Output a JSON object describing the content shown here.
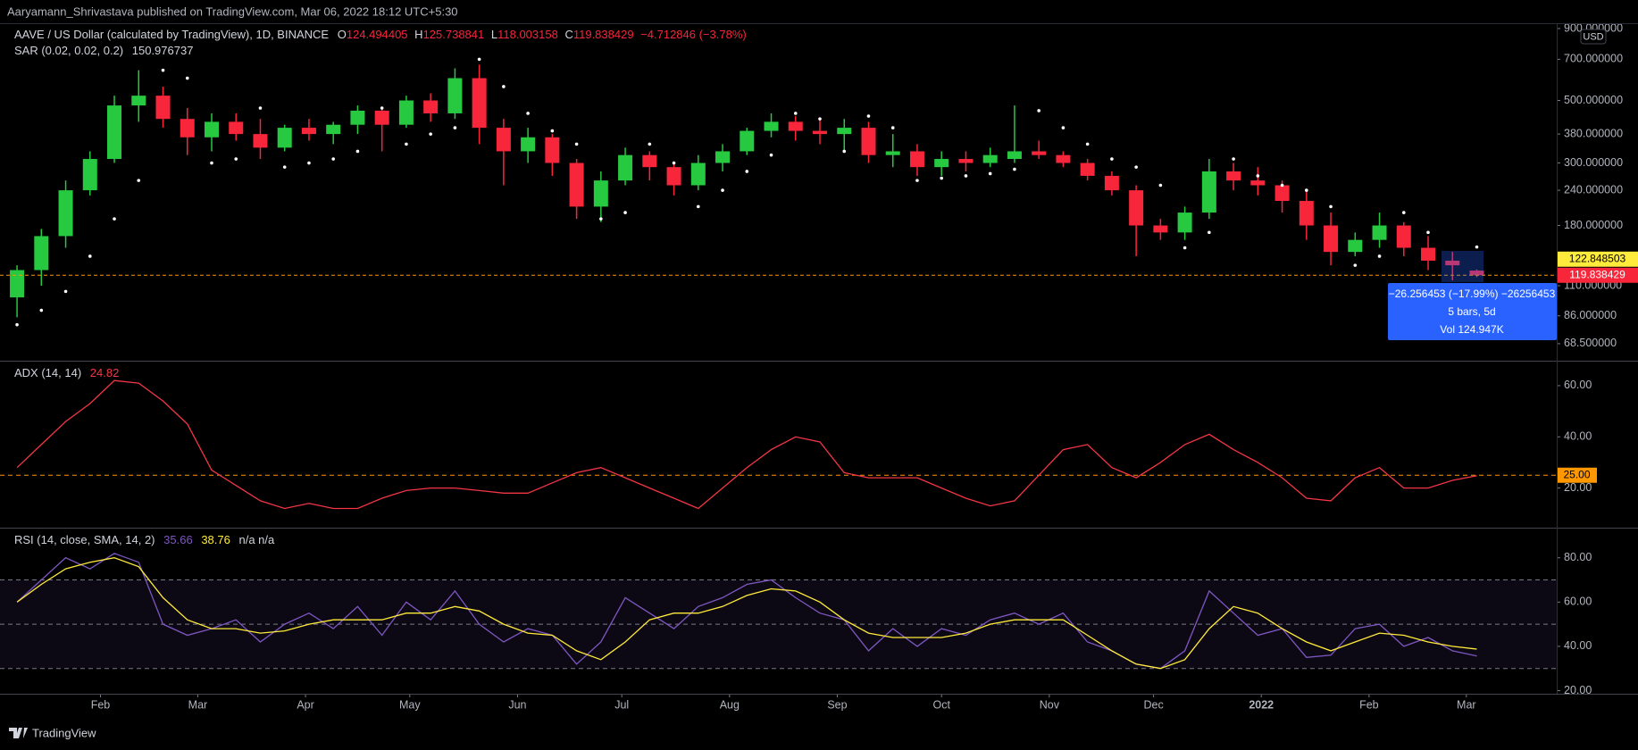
{
  "header": "Aaryamann_Shrivastava published on TradingView.com, Mar 06, 2022 18:12 UTC+5:30",
  "branding": "TradingView",
  "chart_data": [
    {
      "type": "candlestick",
      "title": "AAVE / US Dollar (calculated by TradingView), 1D, BINANCE",
      "ohlc_labels": [
        "O",
        "H",
        "L",
        "C"
      ],
      "change_label": "−4.712846 (−3.78%)",
      "currency": "USD",
      "color_up": "#26c940",
      "color_down": "#f7263a",
      "log_scale": true,
      "xlim": [
        2.1,
        450
      ],
      "ylim": [
        59.6,
        940
      ],
      "xticks": [
        {
          "value": 31,
          "label": "Feb"
        },
        {
          "value": 59,
          "label": "Mar"
        },
        {
          "value": 90,
          "label": "Apr"
        },
        {
          "value": 120,
          "label": "May"
        },
        {
          "value": 151,
          "label": "Jun"
        },
        {
          "value": 181,
          "label": "Jul"
        },
        {
          "value": 212,
          "label": "Aug"
        },
        {
          "value": 243,
          "label": "Sep"
        },
        {
          "value": 273,
          "label": "Oct"
        },
        {
          "value": 304,
          "label": "Nov"
        },
        {
          "value": 334,
          "label": "Dec"
        },
        {
          "value": 365,
          "label": "2022"
        },
        {
          "value": 396,
          "label": "Feb"
        },
        {
          "value": 424,
          "label": "Mar"
        }
      ],
      "yticks": [
        {
          "value": 900,
          "label": "900.000000"
        },
        {
          "value": 700,
          "label": "700.000000"
        },
        {
          "value": 500,
          "label": "500.000000"
        },
        {
          "value": 380,
          "label": "380.000000"
        },
        {
          "value": 300,
          "label": "300.000000"
        },
        {
          "value": 240,
          "label": "240.000000"
        },
        {
          "value": 180,
          "label": "180.000000"
        },
        {
          "value": 110,
          "label": "110.000000"
        },
        {
          "value": 86,
          "label": "86.000000"
        },
        {
          "value": 68.5,
          "label": "68.500000"
        }
      ],
      "x": [
        7,
        14,
        21,
        28,
        35,
        42,
        49,
        56,
        63,
        70,
        77,
        84,
        91,
        98,
        105,
        112,
        119,
        126,
        133,
        140,
        147,
        154,
        161,
        168,
        175,
        182,
        189,
        196,
        203,
        210,
        217,
        224,
        231,
        238,
        245,
        252,
        259,
        266,
        273,
        280,
        287,
        294,
        301,
        308,
        315,
        322,
        329,
        336,
        343,
        350,
        357,
        364,
        371,
        378,
        385,
        392,
        399,
        406,
        413,
        420,
        427
      ],
      "open": [
        100,
        125,
        165,
        240,
        310,
        480,
        520,
        430,
        370,
        420,
        380,
        340,
        400,
        380,
        410,
        460,
        410,
        500,
        450,
        600,
        400,
        330,
        370,
        300,
        210,
        260,
        320,
        290,
        250,
        300,
        330,
        390,
        420,
        390,
        380,
        400,
        320,
        330,
        290,
        310,
        300,
        310,
        330,
        320,
        300,
        270,
        240,
        180,
        170,
        200,
        280,
        260,
        250,
        220,
        180,
        145,
        160,
        180,
        150,
        135,
        124.494405
      ],
      "high": [
        130,
        175,
        260,
        330,
        520,
        640,
        560,
        470,
        450,
        450,
        430,
        410,
        430,
        420,
        480,
        470,
        520,
        530,
        650,
        670,
        430,
        400,
        380,
        310,
        280,
        340,
        330,
        300,
        320,
        350,
        400,
        450,
        440,
        430,
        430,
        420,
        380,
        350,
        330,
        330,
        340,
        480,
        360,
        330,
        310,
        280,
        250,
        190,
        210,
        310,
        300,
        290,
        260,
        240,
        200,
        170,
        200,
        185,
        165,
        145,
        125.738841
      ],
      "low": [
        85,
        110,
        150,
        230,
        300,
        420,
        400,
        320,
        330,
        360,
        310,
        330,
        360,
        350,
        380,
        330,
        400,
        420,
        430,
        350,
        250,
        300,
        270,
        190,
        185,
        250,
        260,
        230,
        240,
        280,
        320,
        370,
        360,
        350,
        330,
        300,
        290,
        270,
        270,
        280,
        290,
        300,
        310,
        290,
        260,
        230,
        140,
        160,
        160,
        190,
        240,
        230,
        200,
        160,
        130,
        140,
        150,
        140,
        125,
        115,
        118.003158
      ],
      "close": [
        125,
        165,
        240,
        310,
        480,
        520,
        430,
        370,
        420,
        380,
        340,
        400,
        380,
        410,
        460,
        410,
        500,
        450,
        600,
        400,
        330,
        370,
        300,
        210,
        260,
        320,
        290,
        250,
        300,
        330,
        390,
        420,
        390,
        380,
        400,
        320,
        330,
        290,
        310,
        300,
        320,
        330,
        320,
        300,
        270,
        240,
        180,
        170,
        200,
        280,
        260,
        250,
        220,
        180,
        145,
        160,
        180,
        150,
        135,
        130,
        119.838429
      ],
      "sar": {
        "name": "SAR (0.02, 0.02, 0.2)",
        "color": "#ffffff",
        "values": [
          80,
          90,
          105,
          140,
          190,
          260,
          640,
          600,
          300,
          310,
          470,
          290,
          300,
          310,
          330,
          470,
          350,
          380,
          400,
          700,
          560,
          450,
          390,
          350,
          190,
          200,
          350,
          300,
          210,
          240,
          280,
          320,
          450,
          430,
          330,
          440,
          400,
          260,
          265,
          270,
          275,
          285,
          460,
          400,
          350,
          310,
          290,
          250,
          150,
          170,
          310,
          270,
          250,
          240,
          210,
          130,
          140,
          200,
          170,
          110,
          150.976737
        ]
      },
      "price_line_color": "#ff9800",
      "price_labels": [
        {
          "value": 122.848503,
          "color": "#ffeb3b",
          "text_color": "#000000"
        },
        {
          "value": 119.838429,
          "color": "#f7263a",
          "text_color": "#ffffff"
        }
      ],
      "measure": {
        "change": "−26.256453 (−17.99%) −26256453",
        "bars": "5 bars, 5d",
        "volume": "Vol 124.947K",
        "color": "#2962ff"
      }
    },
    {
      "type": "line",
      "title": "ADX (14, 14)",
      "ylim": [
        4.5,
        69.4
      ],
      "yticks": [
        {
          "value": 60,
          "label": "60.00"
        },
        {
          "value": 40,
          "label": "40.00"
        },
        {
          "value": 20,
          "label": "20.00"
        }
      ],
      "levels": [
        {
          "value": 25,
          "label": "25.00"
        }
      ],
      "level_color": "#ff9800",
      "series": [
        {
          "color": "#f23645",
          "values": [
            28,
            37,
            46,
            53,
            62,
            61,
            54,
            45,
            27,
            21,
            15,
            12,
            14,
            12,
            12,
            16,
            19,
            20,
            20,
            19,
            18,
            18,
            22,
            26,
            28,
            24,
            20,
            16,
            12,
            20,
            28,
            35,
            40,
            38,
            26,
            24,
            24,
            24,
            20,
            16,
            13,
            15,
            25,
            35,
            37,
            28,
            24,
            30,
            37,
            41,
            35,
            30,
            24,
            16,
            15,
            24,
            28,
            20,
            20,
            23,
            24.82
          ]
        }
      ]
    },
    {
      "type": "line",
      "title": "RSI (14, close, SMA, 14, 2)",
      "na_label": "n/a n/a",
      "ylim": [
        18.6,
        93.2
      ],
      "yticks": [
        {
          "value": 80,
          "label": "80.00"
        },
        {
          "value": 60,
          "label": "60.00"
        },
        {
          "value": 40,
          "label": "40.00"
        },
        {
          "value": 20,
          "label": "20.00"
        }
      ],
      "band": [
        30,
        70
      ],
      "band_color": "#7e57c2",
      "levels": [
        30,
        50,
        70
      ],
      "level_color": "#787b86",
      "series": [
        {
          "color": "#7e57c2",
          "values": [
            60,
            70,
            80,
            75,
            82,
            78,
            50,
            45,
            48,
            52,
            42,
            50,
            55,
            48,
            58,
            45,
            60,
            52,
            65,
            50,
            42,
            48,
            45,
            32,
            42,
            62,
            55,
            48,
            58,
            62,
            68,
            70,
            62,
            55,
            52,
            38,
            48,
            40,
            48,
            45,
            52,
            55,
            50,
            55,
            42,
            38,
            32,
            30,
            38,
            65,
            55,
            45,
            48,
            35,
            36,
            48,
            50,
            40,
            44,
            38,
            35.66
          ]
        },
        {
          "color": "#ffeb3b",
          "values": [
            60,
            68,
            75,
            78,
            80,
            76,
            62,
            52,
            48,
            48,
            46,
            47,
            50,
            52,
            52,
            52,
            55,
            55,
            58,
            56,
            50,
            46,
            45,
            38,
            34,
            42,
            52,
            55,
            55,
            58,
            63,
            66,
            65,
            60,
            52,
            46,
            44,
            44,
            44,
            46,
            50,
            52,
            52,
            52,
            45,
            38,
            32,
            30,
            34,
            48,
            58,
            55,
            48,
            42,
            38,
            42,
            46,
            45,
            42,
            40,
            38.76
          ]
        }
      ]
    }
  ]
}
